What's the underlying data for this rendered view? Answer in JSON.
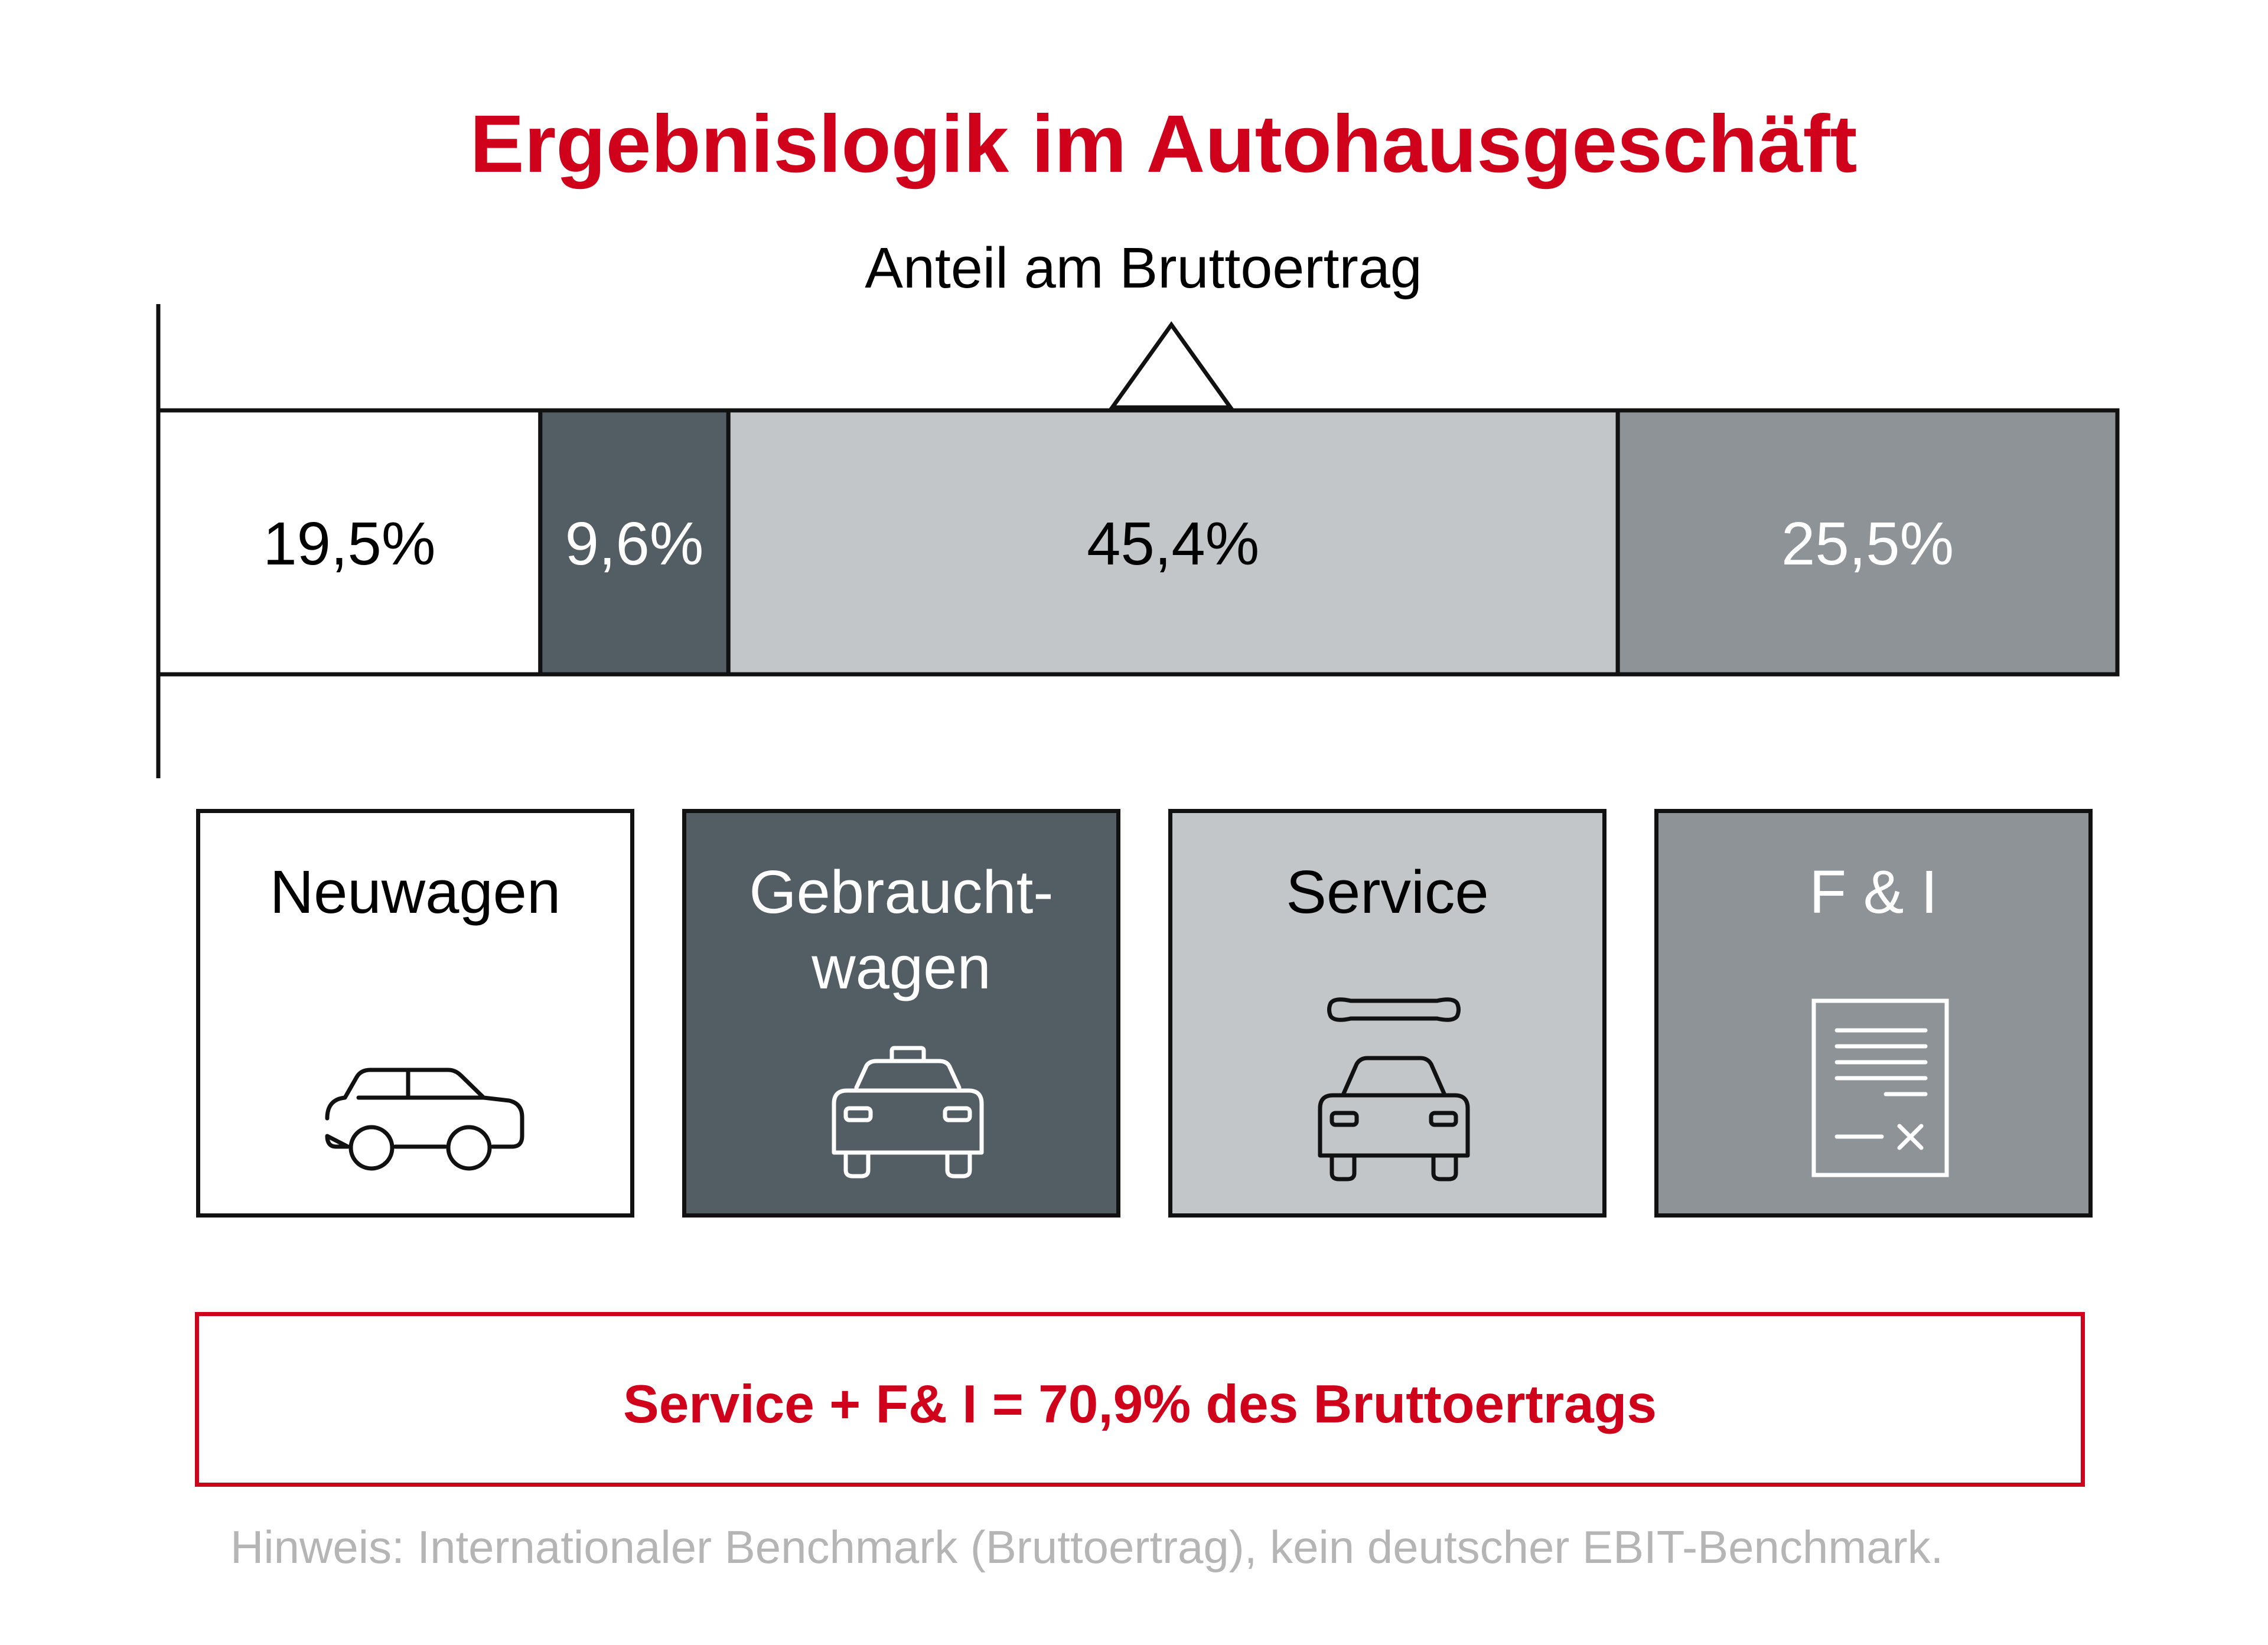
{
  "title": "Ergebnislogik im Autohausgeschäft",
  "chart_data": {
    "type": "bar",
    "orientation": "horizontal-stacked",
    "title": "Ergebnislogik im Autohausgeschäft",
    "subtitle": "Anteil am Bruttoertrag",
    "categories": [
      "Neuwagen",
      "Gebrauchtwagen",
      "Service",
      "F & I"
    ],
    "values": [
      19.5,
      9.6,
      45.4,
      25.5
    ],
    "value_labels": [
      "19,5%",
      "9,6%",
      "45,4%",
      "25,5%"
    ],
    "colors": [
      "#ffffff",
      "#535d64",
      "#c2c6c8",
      "#8e9398"
    ],
    "label_colors": [
      "#000000",
      "#ffffff",
      "#000000",
      "#ffffff"
    ],
    "xlim": [
      0,
      100
    ],
    "marker_at": 51.5
  },
  "cards": [
    {
      "label": "Neuwagen",
      "icon": "car-icon",
      "bg": "#ffffff",
      "fg": "#000000"
    },
    {
      "label": "Gebraucht-\nwagen",
      "icon": "taxi-icon",
      "bg": "#535d64",
      "fg": "#ffffff"
    },
    {
      "label": "Service",
      "icon": "car-service-icon",
      "bg": "#c2c6c8",
      "fg": "#000000"
    },
    {
      "label": "F & I",
      "icon": "contract-icon",
      "bg": "#8e9398",
      "fg": "#ffffff"
    }
  ],
  "summary": "Service + F& I = 70,9% des Bruttoertrags",
  "footnote": "Hinweis: Internationaler Benchmark (Bruttoertrag), kein deutscher EBIT-Benchmark.",
  "accent_color": "#d0021b"
}
